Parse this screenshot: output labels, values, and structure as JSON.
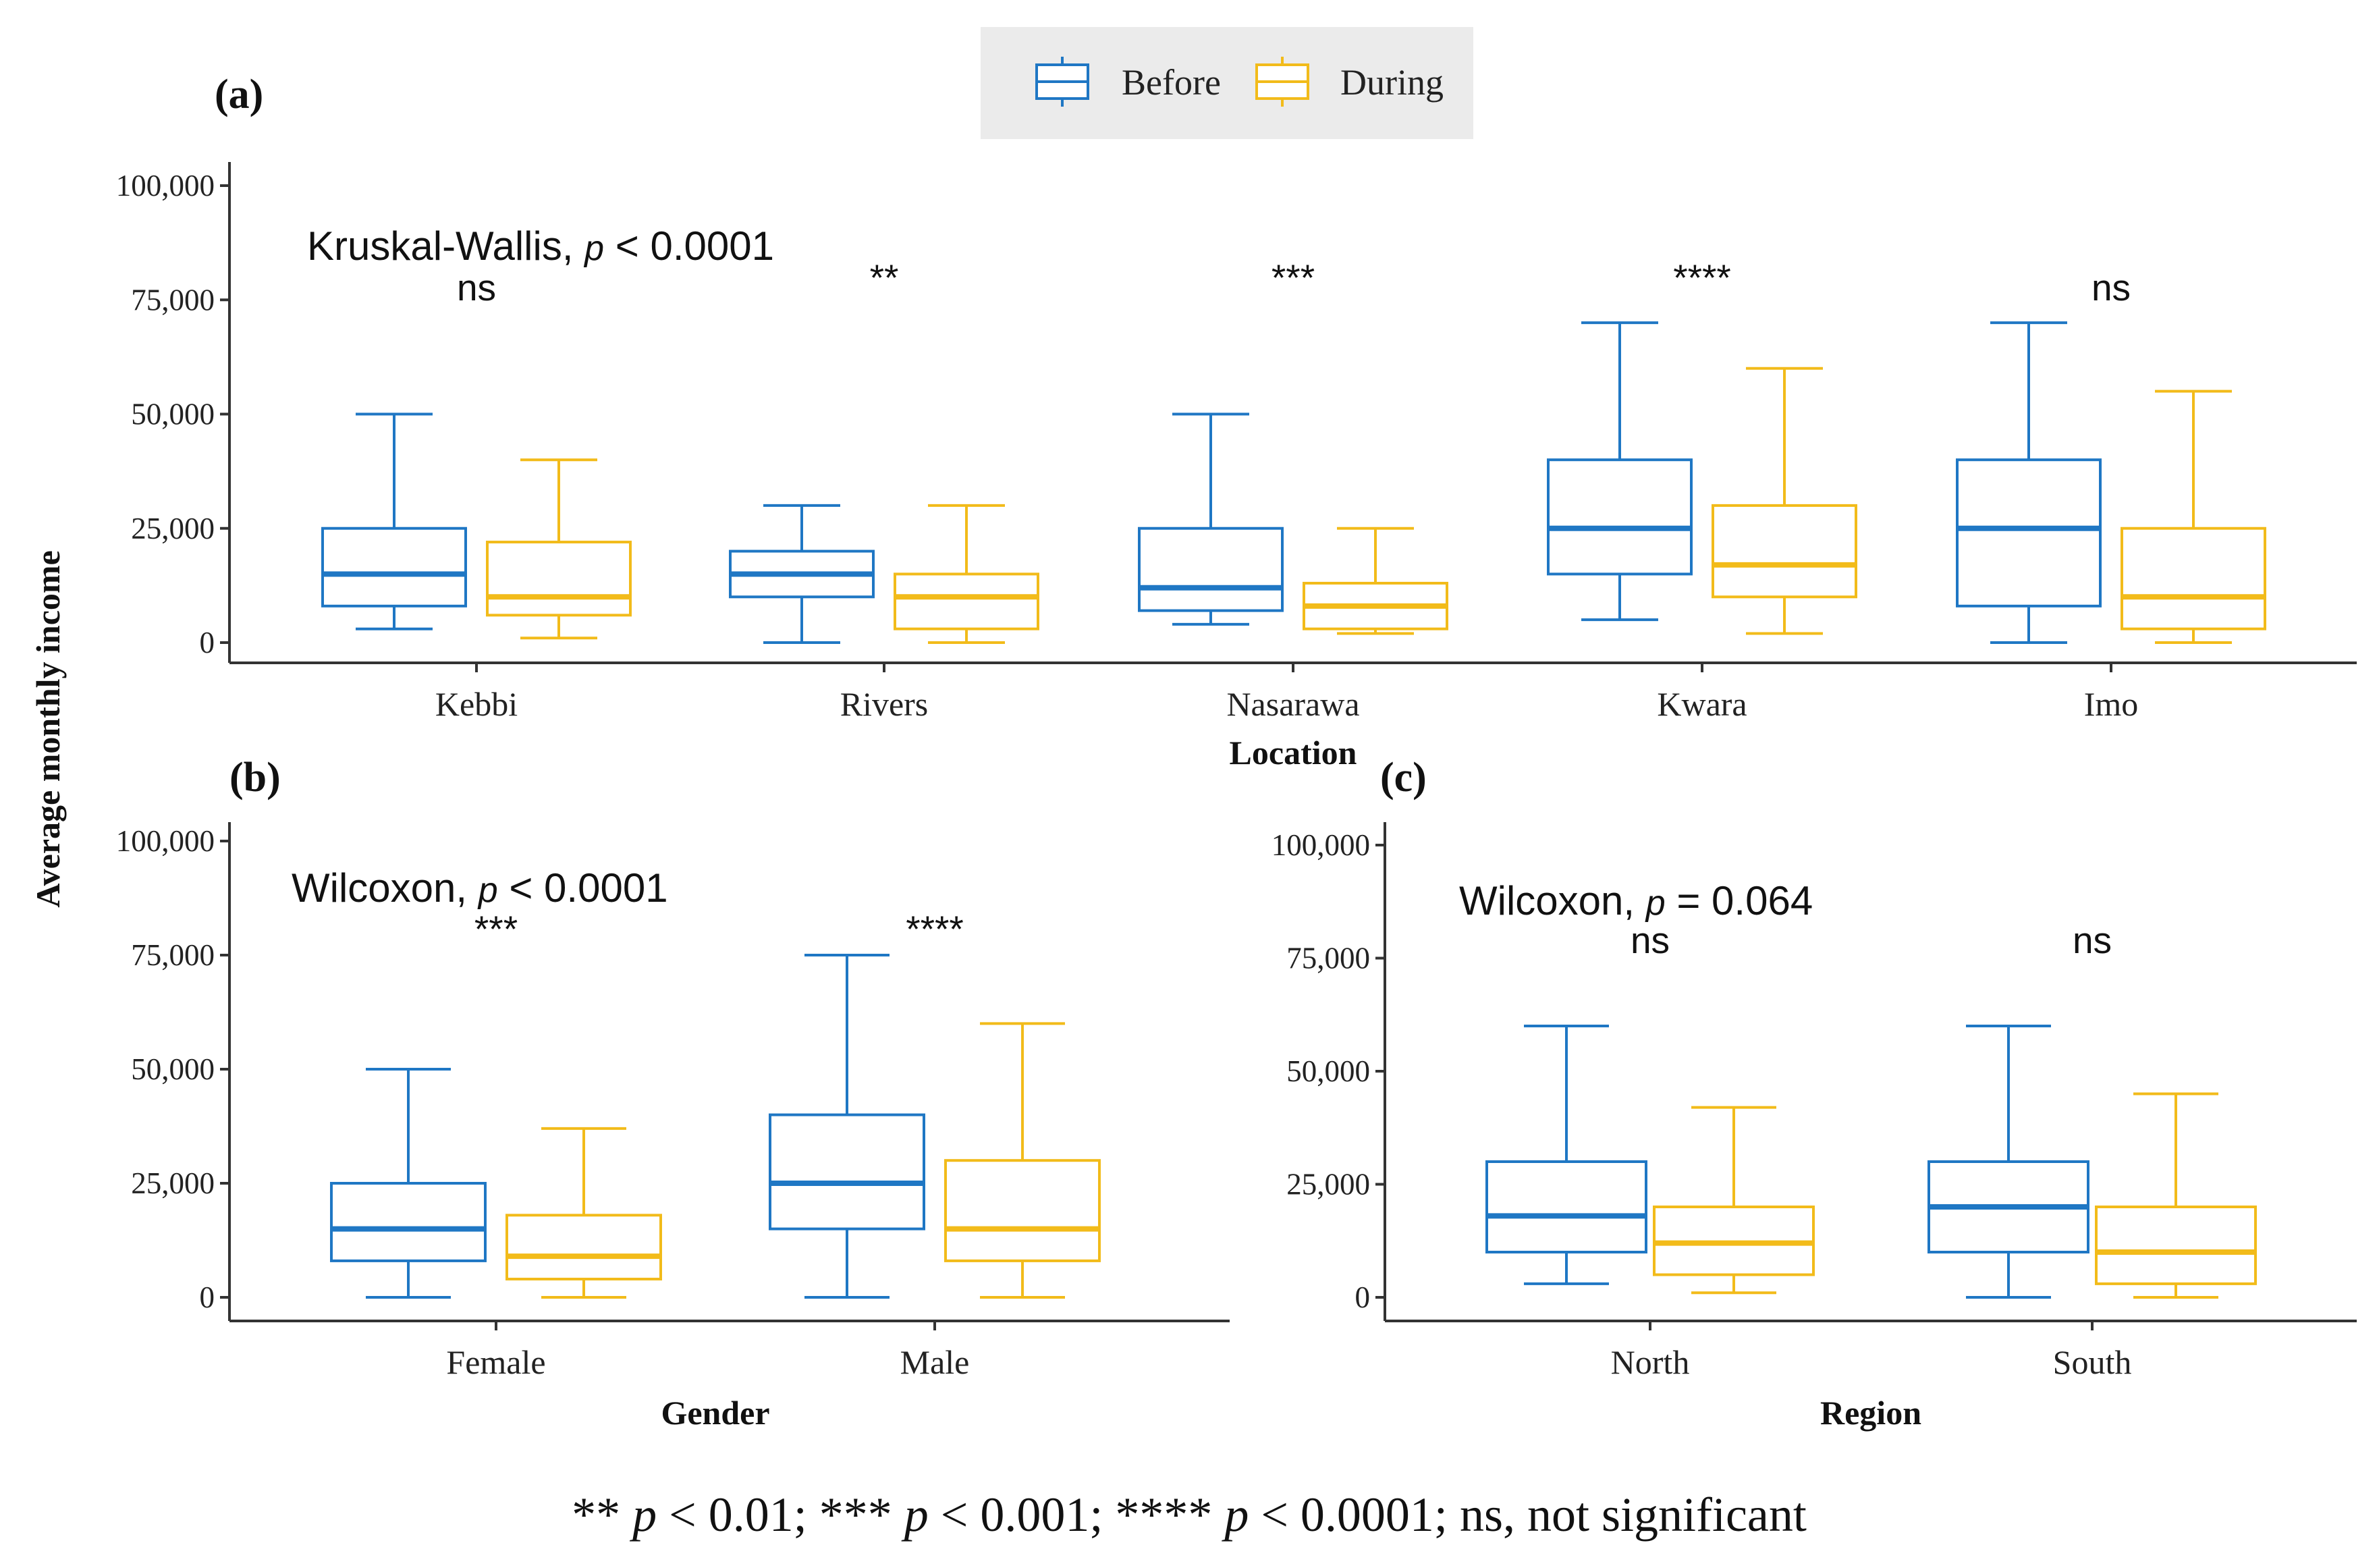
{
  "legend": {
    "before_label": "Before",
    "during_label": "During",
    "before_color": "#1f77c4",
    "during_color": "#f2bb1a",
    "placement": "top-center"
  },
  "y_title": "Average monthly income",
  "footnote": {
    "t1": "** ",
    "p1": "p",
    "t2": " < 0.01; *** ",
    "p2": "p",
    "t3": " < 0.001; **** ",
    "p3": "p",
    "t4": " < 0.0001; ns, not significant"
  },
  "chart_data": [
    {
      "panel": "(a)",
      "type": "boxplot",
      "xlabel": "Location",
      "ylim": [
        0,
        100000
      ],
      "yticks": [
        0,
        25000,
        50000,
        75000,
        100000
      ],
      "ytick_labels": [
        "0",
        "25,000",
        "50,000",
        "75,000",
        "100,000"
      ],
      "test": {
        "name": "Kruskal-Wallis,",
        "p_symbol": "p",
        "p_text": "< 0.0001"
      },
      "categories": [
        "Kebbi",
        "Rivers",
        "Nasarawa",
        "Kwara",
        "Imo"
      ],
      "significance": [
        "ns",
        "**",
        "***",
        "****",
        "ns"
      ],
      "series": [
        {
          "name": "Before",
          "boxes": [
            {
              "min": 3000,
              "q1": 8000,
              "median": 15000,
              "q3": 25000,
              "max": 50000
            },
            {
              "min": 0,
              "q1": 10000,
              "median": 15000,
              "q3": 20000,
              "max": 30000
            },
            {
              "min": 4000,
              "q1": 7000,
              "median": 12000,
              "q3": 25000,
              "max": 50000
            },
            {
              "min": 5000,
              "q1": 15000,
              "median": 25000,
              "q3": 40000,
              "max": 70000
            },
            {
              "min": 0,
              "q1": 8000,
              "median": 25000,
              "q3": 40000,
              "max": 70000
            }
          ]
        },
        {
          "name": "During",
          "boxes": [
            {
              "min": 1000,
              "q1": 6000,
              "median": 10000,
              "q3": 22000,
              "max": 40000
            },
            {
              "min": 0,
              "q1": 3000,
              "median": 10000,
              "q3": 15000,
              "max": 30000
            },
            {
              "min": 2000,
              "q1": 3000,
              "median": 8000,
              "q3": 13000,
              "max": 25000
            },
            {
              "min": 2000,
              "q1": 10000,
              "median": 17000,
              "q3": 30000,
              "max": 60000
            },
            {
              "min": 0,
              "q1": 3000,
              "median": 10000,
              "q3": 25000,
              "max": 55000
            }
          ]
        }
      ]
    },
    {
      "panel": "(b)",
      "type": "boxplot",
      "xlabel": "Gender",
      "ylim": [
        0,
        100000
      ],
      "yticks": [
        0,
        25000,
        50000,
        75000,
        100000
      ],
      "ytick_labels": [
        "0",
        "25,000",
        "50,000",
        "75,000",
        "100,000"
      ],
      "test": {
        "name": "Wilcoxon,",
        "p_symbol": "p",
        "p_text": "< 0.0001"
      },
      "categories": [
        "Female",
        "Male"
      ],
      "significance": [
        "***",
        "****"
      ],
      "series": [
        {
          "name": "Before",
          "boxes": [
            {
              "min": 0,
              "q1": 8000,
              "median": 15000,
              "q3": 25000,
              "max": 50000
            },
            {
              "min": 0,
              "q1": 15000,
              "median": 25000,
              "q3": 40000,
              "max": 75000
            }
          ]
        },
        {
          "name": "During",
          "boxes": [
            {
              "min": 0,
              "q1": 4000,
              "median": 9000,
              "q3": 18000,
              "max": 37000
            },
            {
              "min": 0,
              "q1": 8000,
              "median": 15000,
              "q3": 30000,
              "max": 60000
            }
          ]
        }
      ]
    },
    {
      "panel": "(c)",
      "type": "boxplot",
      "xlabel": "Region",
      "ylim": [
        0,
        100000
      ],
      "yticks": [
        0,
        25000,
        50000,
        75000,
        100000
      ],
      "ytick_labels": [
        "0",
        "25,000",
        "50,000",
        "75,000",
        "100,000"
      ],
      "test": {
        "name": "Wilcoxon,",
        "p_symbol": "p",
        "p_text": "= 0.064"
      },
      "categories": [
        "North",
        "South"
      ],
      "significance": [
        "ns",
        "ns"
      ],
      "series": [
        {
          "name": "Before",
          "boxes": [
            {
              "min": 3000,
              "q1": 10000,
              "median": 18000,
              "q3": 30000,
              "max": 60000
            },
            {
              "min": 0,
              "q1": 10000,
              "median": 20000,
              "q3": 30000,
              "max": 60000
            }
          ]
        },
        {
          "name": "During",
          "boxes": [
            {
              "min": 1000,
              "q1": 5000,
              "median": 12000,
              "q3": 20000,
              "max": 42000
            },
            {
              "min": 0,
              "q1": 3000,
              "median": 10000,
              "q3": 20000,
              "max": 45000
            }
          ]
        }
      ]
    }
  ]
}
